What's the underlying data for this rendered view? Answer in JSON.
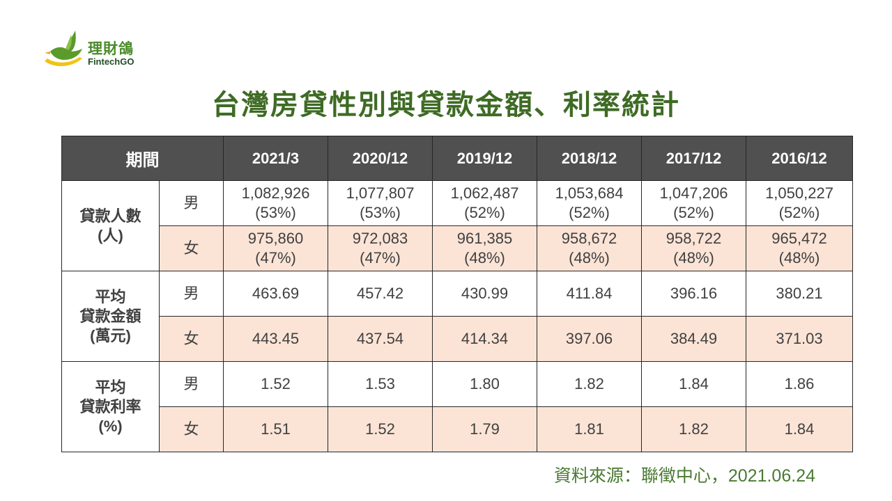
{
  "logo": {
    "name_cn": "理財鴿",
    "name_en": "FintechGO"
  },
  "title": "台灣房貸性別與貸款金額、利率統計",
  "table": {
    "period_label": "期間",
    "periods": [
      "2021/3",
      "2020/12",
      "2019/12",
      "2018/12",
      "2017/12",
      "2016/12"
    ],
    "groups": [
      {
        "label_lines": [
          "貸款人數",
          "(人)"
        ],
        "rows": [
          {
            "gender": "男",
            "values": [
              [
                "1,082,926",
                "(53%)"
              ],
              [
                "1,077,807",
                "(53%)"
              ],
              [
                "1,062,487",
                "(52%)"
              ],
              [
                "1,053,684",
                "(52%)"
              ],
              [
                "1,047,206",
                "(52%)"
              ],
              [
                "1,050,227",
                "(52%)"
              ]
            ]
          },
          {
            "gender": "女",
            "values": [
              [
                "975,860",
                "(47%)"
              ],
              [
                "972,083",
                "(47%)"
              ],
              [
                "961,385",
                "(48%)"
              ],
              [
                "958,672",
                "(48%)"
              ],
              [
                "958,722",
                "(48%)"
              ],
              [
                "965,472",
                "(48%)"
              ]
            ]
          }
        ]
      },
      {
        "label_lines": [
          "平均",
          "貸款金額",
          "(萬元)"
        ],
        "rows": [
          {
            "gender": "男",
            "values": [
              [
                "463.69"
              ],
              [
                "457.42"
              ],
              [
                "430.99"
              ],
              [
                "411.84"
              ],
              [
                "396.16"
              ],
              [
                "380.21"
              ]
            ]
          },
          {
            "gender": "女",
            "values": [
              [
                "443.45"
              ],
              [
                "437.54"
              ],
              [
                "414.34"
              ],
              [
                "397.06"
              ],
              [
                "384.49"
              ],
              [
                "371.03"
              ]
            ]
          }
        ]
      },
      {
        "label_lines": [
          "平均",
          "貸款利率",
          "(%)"
        ],
        "rows": [
          {
            "gender": "男",
            "values": [
              [
                "1.52"
              ],
              [
                "1.53"
              ],
              [
                "1.80"
              ],
              [
                "1.82"
              ],
              [
                "1.84"
              ],
              [
                "1.86"
              ]
            ]
          },
          {
            "gender": "女",
            "values": [
              [
                "1.51"
              ],
              [
                "1.52"
              ],
              [
                "1.79"
              ],
              [
                "1.81"
              ],
              [
                "1.82"
              ],
              [
                "1.84"
              ]
            ]
          }
        ]
      }
    ]
  },
  "source": {
    "label": "資料來源：聯徵中心，",
    "date": "2021.06.24"
  },
  "colors": {
    "title": "#3e6b24",
    "header_bg": "#505050",
    "female_row_bg": "#fbe4d6",
    "source_text": "#4a7a32"
  }
}
